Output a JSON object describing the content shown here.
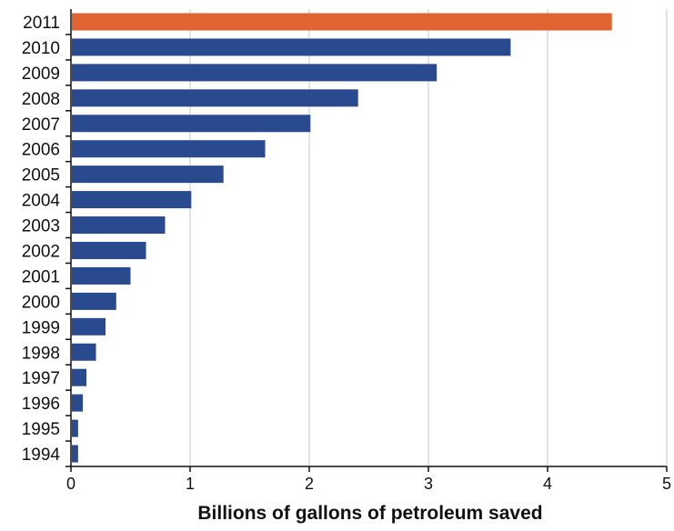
{
  "chart_data": {
    "type": "bar",
    "orientation": "horizontal",
    "categories": [
      "2011",
      "2010",
      "2009",
      "2008",
      "2007",
      "2006",
      "2005",
      "2004",
      "2003",
      "2002",
      "2001",
      "2000",
      "1999",
      "1998",
      "1997",
      "1996",
      "1995",
      "1994"
    ],
    "values": [
      4.54,
      3.69,
      3.07,
      2.41,
      2.01,
      1.63,
      1.28,
      1.01,
      0.79,
      0.63,
      0.5,
      0.38,
      0.29,
      0.21,
      0.13,
      0.1,
      0.06,
      0.06
    ],
    "highlight_category": "2011",
    "colors": {
      "default": "#294a8e",
      "highlight": "#e06432",
      "grid": "#c8c8c8",
      "axis": "#111111"
    },
    "xlabel": "Billions of gallons of petroleum saved",
    "ylabel": "",
    "xlim": [
      0,
      5
    ],
    "xticks": [
      0,
      1,
      2,
      3,
      4,
      5
    ],
    "grid": "vertical"
  }
}
